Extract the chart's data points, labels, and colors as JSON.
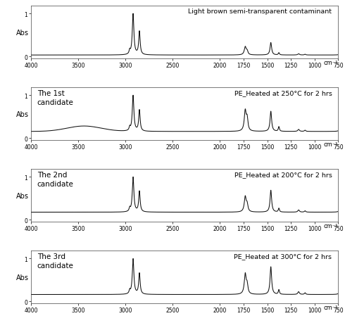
{
  "subplots": [
    {
      "label_left": "",
      "label_right": "Light brown semi-transparent contaminant",
      "ylabel": "Abs",
      "baseline": 0.03,
      "has_broad_3500": false,
      "peak_2920": 1.0,
      "peak_2850": 0.75,
      "peak_2960": 0.3,
      "peak_1730": 0.18,
      "peak_1710": 0.08,
      "peak_1462": 0.28,
      "peak_1375": 0.05,
      "peak_720a": 0.1,
      "peak_720b": 0.07
    },
    {
      "label_left": "The 1st\ncandidate",
      "label_right": "PE_Heated at 250°C for 2 hrs",
      "ylabel": "Abs",
      "baseline": 0.17,
      "has_broad_3500": true,
      "peak_2920": 1.0,
      "peak_2850": 0.78,
      "peak_2960": 0.32,
      "peak_1730": 0.52,
      "peak_1710": 0.3,
      "peak_1462": 0.52,
      "peak_1375": 0.12,
      "peak_720a": 0.25,
      "peak_720b": 0.18
    },
    {
      "label_left": "The 2nd\ncandidate",
      "label_right": "PE_Heated at 200°C for 2 hrs",
      "ylabel": "Abs",
      "baseline": 0.2,
      "has_broad_3500": false,
      "peak_2920": 1.0,
      "peak_2850": 0.78,
      "peak_2960": 0.32,
      "peak_1730": 0.4,
      "peak_1710": 0.18,
      "peak_1462": 0.58,
      "peak_1375": 0.1,
      "peak_720a": 0.28,
      "peak_720b": 0.2
    },
    {
      "label_left": "The 3rd\ncandidate",
      "label_right": "PE_Heated at 300°C for 2 hrs",
      "ylabel": "Abs",
      "baseline": 0.18,
      "has_broad_3500": false,
      "peak_2920": 1.0,
      "peak_2850": 0.78,
      "peak_2960": 0.32,
      "peak_1730": 0.52,
      "peak_1710": 0.22,
      "peak_1462": 0.72,
      "peak_1375": 0.12,
      "peak_720a": 0.32,
      "peak_720b": 0.22
    }
  ],
  "xmin": 750,
  "xmax": 4000,
  "xticks": [
    4000,
    3500,
    3000,
    2500,
    2000,
    1750,
    1500,
    1250,
    1000,
    750
  ],
  "xlabel": "cm⁻¹",
  "line_color": "#111111",
  "bg_color": "#ffffff"
}
